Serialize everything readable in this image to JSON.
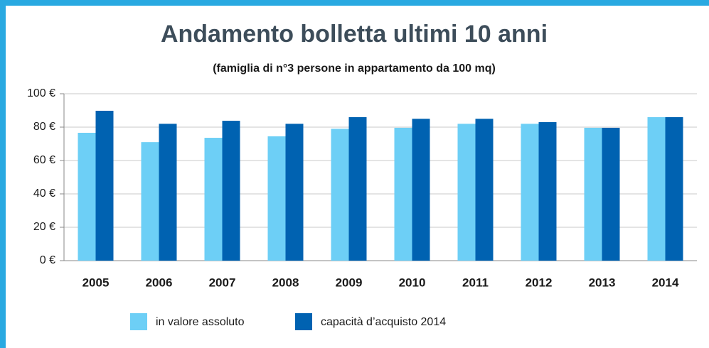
{
  "chart_data": {
    "type": "bar",
    "title": "Andamento bolletta ultimi 10 anni",
    "subtitle": "(famiglia di n°3 persone in appartamento da 100 mq)",
    "categories": [
      "2005",
      "2006",
      "2007",
      "2008",
      "2009",
      "2010",
      "2011",
      "2012",
      "2013",
      "2014"
    ],
    "series": [
      {
        "name": "in valore assoluto",
        "color": "#6dcff6",
        "values": [
          76.6,
          71,
          73.6,
          74.5,
          79,
          79.6,
          82,
          82,
          79.6,
          86
        ]
      },
      {
        "name": "capacità d’acquisto 2014",
        "color": "#0062b1",
        "values": [
          89.8,
          82,
          83.8,
          82,
          86,
          85,
          85,
          83,
          79.6,
          86
        ]
      }
    ],
    "ylim": [
      0,
      100
    ],
    "yticks": [
      {
        "value": 0,
        "label": "0 €"
      },
      {
        "value": 20,
        "label": "20 €"
      },
      {
        "value": 40,
        "label": "40 €"
      },
      {
        "value": 60,
        "label": "60 €"
      },
      {
        "value": 80,
        "label": "80 €"
      },
      {
        "value": 100,
        "label": "100 €"
      }
    ],
    "grid": true
  }
}
